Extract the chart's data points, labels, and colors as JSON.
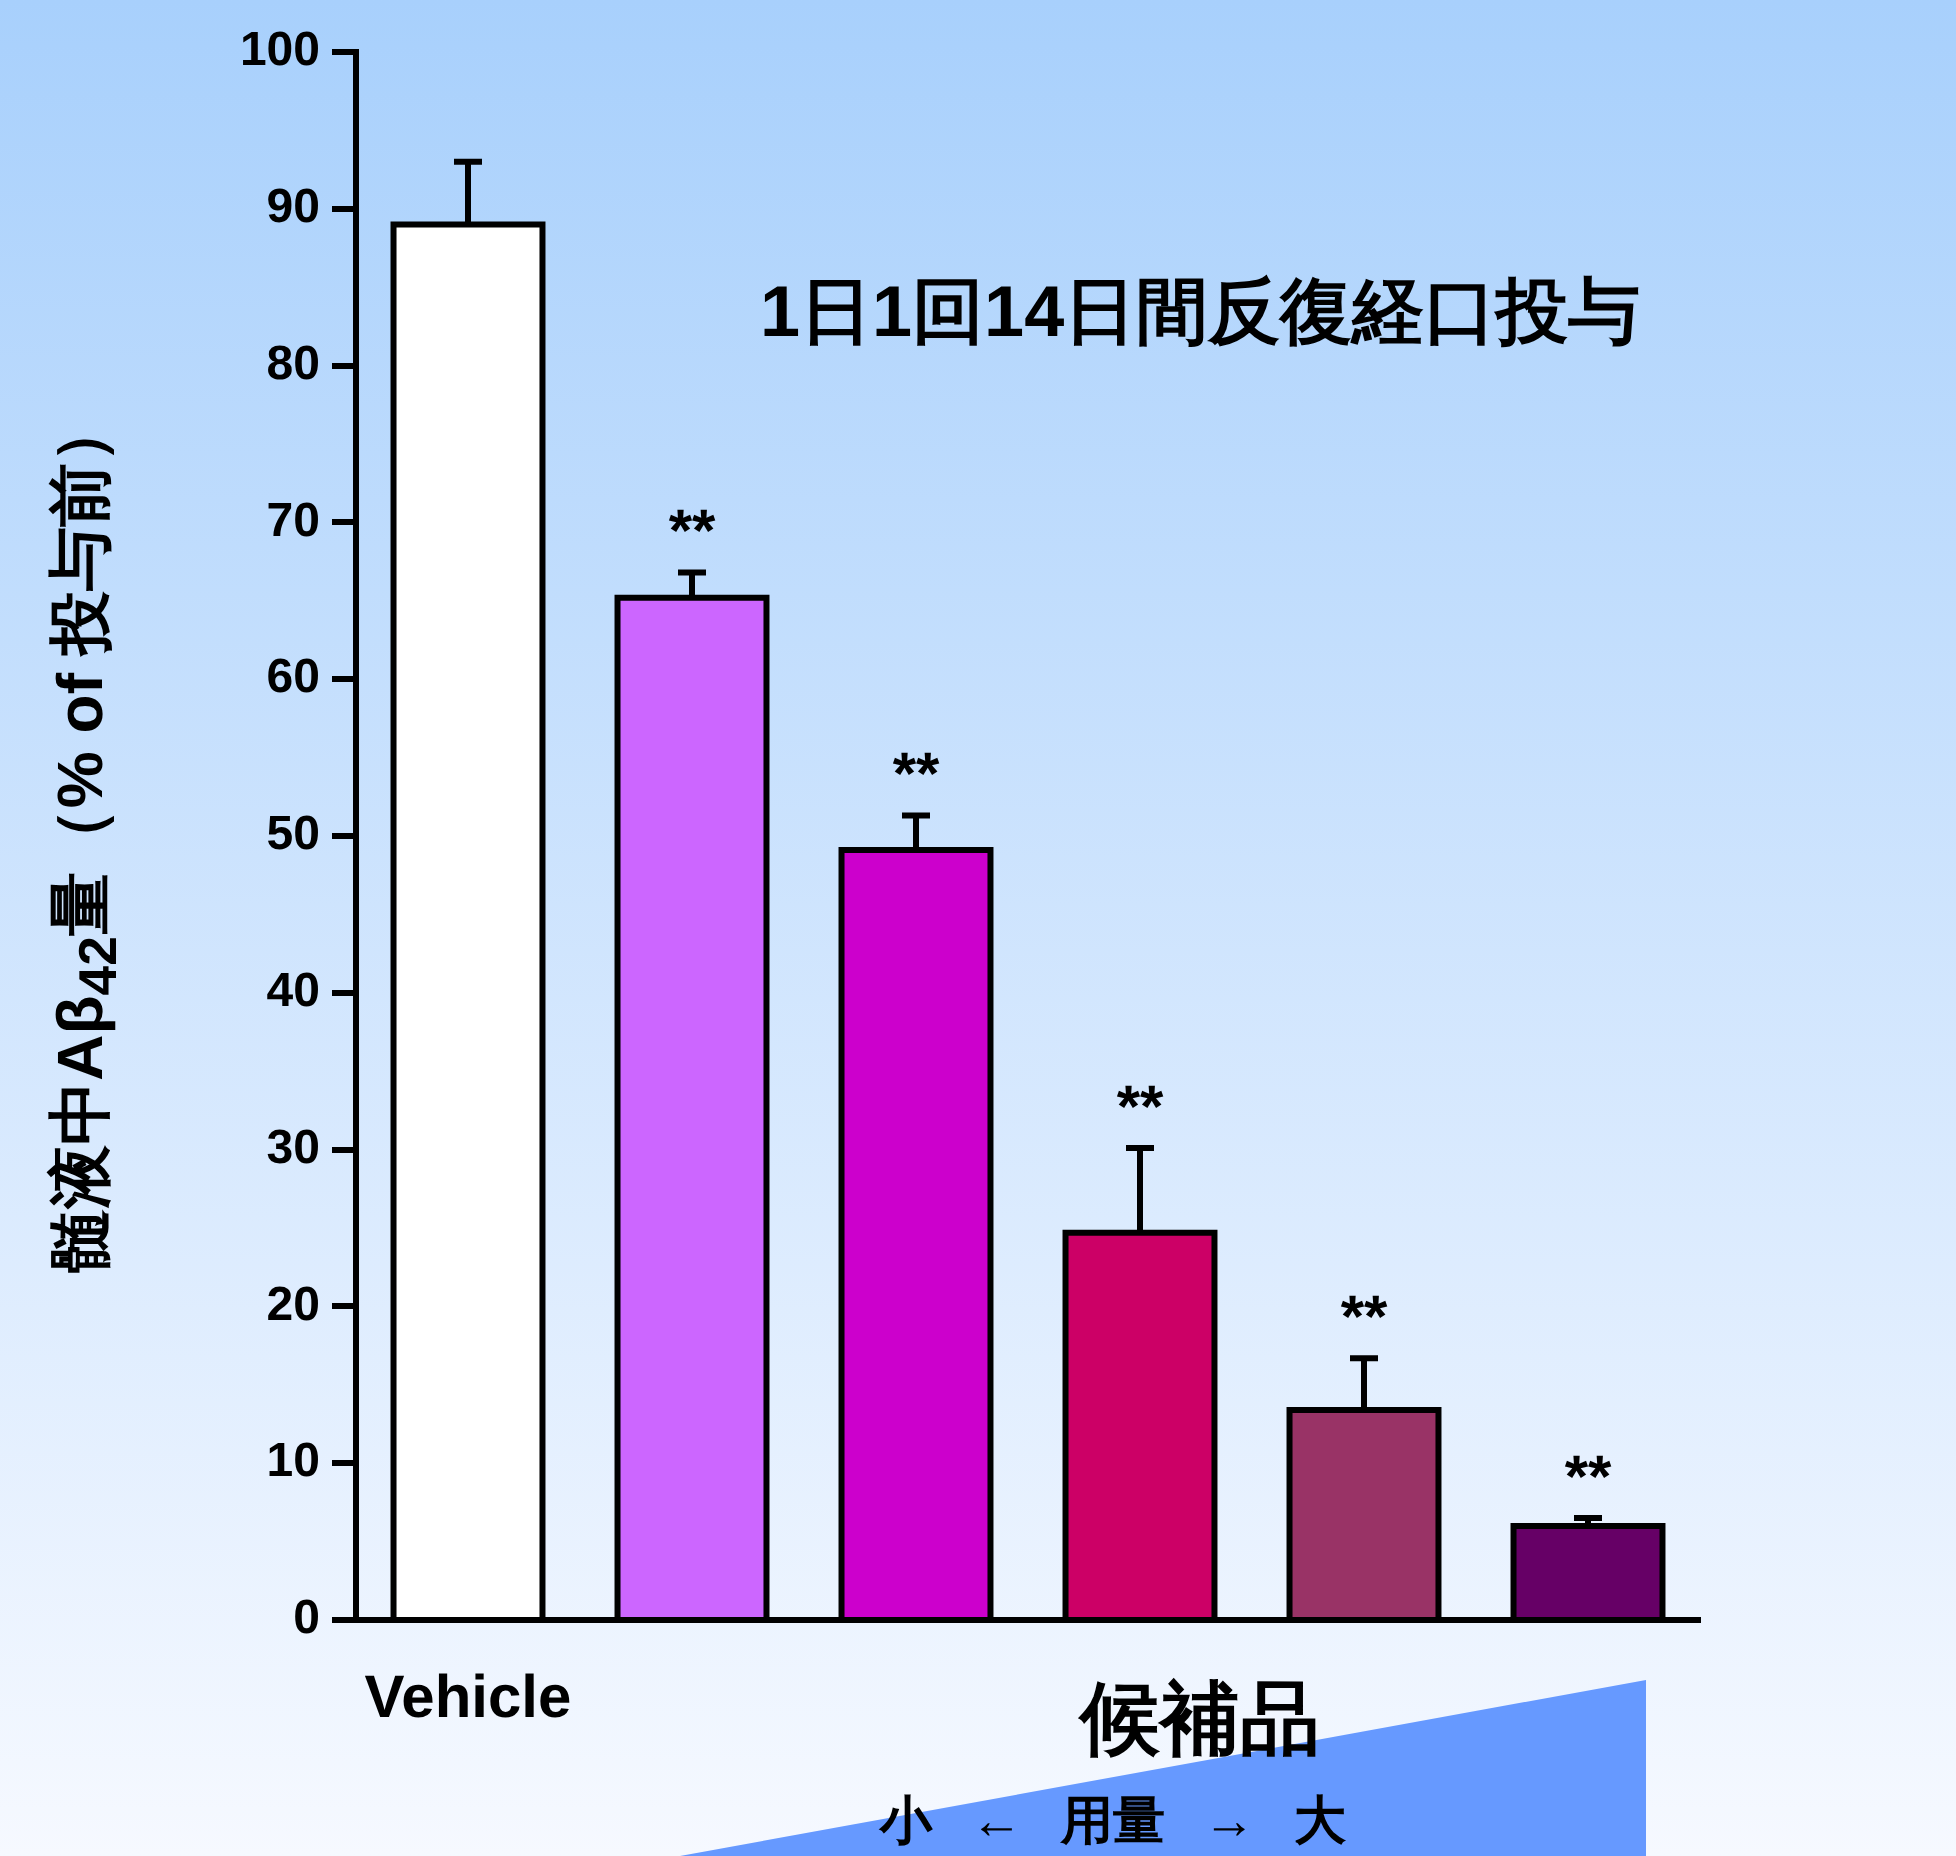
{
  "chart_data": {
    "type": "bar",
    "categories": [
      "Vehicle",
      null,
      null,
      null,
      null,
      null
    ],
    "values": [
      89,
      65.2,
      49.1,
      24.7,
      13.4,
      6
    ],
    "colors": [
      "#ffffff",
      "#cc66ff",
      "#cc00cc",
      "#cc0066",
      "#993366",
      "#660066"
    ],
    "errors": [
      4,
      1.6,
      2.2,
      5.4,
      3.3,
      0.5
    ],
    "value_labels": [
      null,
      "**",
      "**",
      "**",
      "**",
      "**"
    ],
    "ylim": [
      0,
      100
    ],
    "yticks": [
      0,
      10,
      20,
      30,
      40,
      50,
      60,
      70,
      80,
      90,
      100
    ],
    "ylabel": "髄液中Aβ$_{42}$量（% of 投与前）",
    "xlabel": "候補品",
    "annotations": [
      "1日1回14日間反復経口投与",
      "小 ← 用量 → 大"
    ]
  }
}
